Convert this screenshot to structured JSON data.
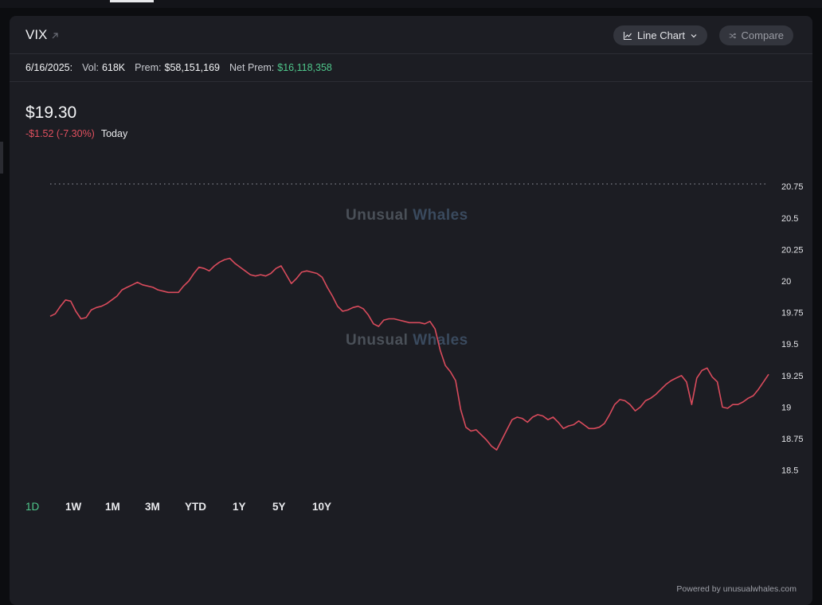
{
  "header": {
    "ticker": "VIX",
    "line_chart_label": "Line Chart",
    "compare_label": "Compare"
  },
  "stats": {
    "date": "6/16/2025:",
    "vol_label": "Vol:",
    "vol_value": "618K",
    "prem_label": "Prem:",
    "prem_value": "$58,151,169",
    "net_prem_label": "Net Prem:",
    "net_prem_value": "$16,118,358"
  },
  "quote": {
    "price": "$19.30",
    "change": "-$1.52 (-7.30%)",
    "period": "Today"
  },
  "watermark": {
    "part1": "Unusual",
    "part2": "Whales"
  },
  "ranges": {
    "items": [
      "1D",
      "1W",
      "1M",
      "3M",
      "YTD",
      "1Y",
      "5Y",
      "10Y"
    ],
    "active": "1D"
  },
  "footer": {
    "powered": "Powered by unusualwhales.com"
  },
  "colors": {
    "line": "#d94b5c",
    "accent_green": "#4fc78b",
    "background": "#1c1d23"
  },
  "chart_data": {
    "type": "line",
    "title": "",
    "xlabel": "",
    "ylabel": "",
    "ylim": [
      18.35,
      20.85
    ],
    "yticks": [
      20.75,
      20.5,
      20.25,
      20,
      19.75,
      19.5,
      19.25,
      19,
      18.75,
      18.5
    ],
    "ytick_labels": [
      "20.75",
      "20.5",
      "20.25",
      "20",
      "19.75",
      "19.5",
      "19.25",
      "19",
      "18.75",
      "18.5"
    ],
    "reference_line": 20.77,
    "grid": false,
    "series": [
      {
        "values": [
          19.72,
          19.74,
          19.8,
          19.85,
          19.84,
          19.76,
          19.7,
          19.71,
          19.77,
          19.79,
          19.8,
          19.82,
          19.85,
          19.88,
          19.93,
          19.95,
          19.97,
          19.99,
          19.97,
          19.96,
          19.95,
          19.93,
          19.92,
          19.91,
          19.91,
          19.91,
          19.96,
          20.0,
          20.06,
          20.11,
          20.1,
          20.08,
          20.12,
          20.15,
          20.17,
          20.18,
          20.14,
          20.11,
          20.08,
          20.05,
          20.04,
          20.05,
          20.04,
          20.06,
          20.1,
          20.12,
          20.05,
          19.98,
          20.02,
          20.07,
          20.08,
          20.07,
          20.06,
          20.03,
          19.95,
          19.88,
          19.8,
          19.76,
          19.77,
          19.79,
          19.8,
          19.78,
          19.73,
          19.66,
          19.64,
          19.69,
          19.7,
          19.7,
          19.69,
          19.68,
          19.67,
          19.67,
          19.67,
          19.66,
          19.68,
          19.62,
          19.45,
          19.33,
          19.28,
          19.21,
          18.98,
          18.84,
          18.81,
          18.82,
          18.78,
          18.74,
          18.69,
          18.66,
          18.74,
          18.82,
          18.9,
          18.92,
          18.91,
          18.88,
          18.92,
          18.94,
          18.93,
          18.9,
          18.92,
          18.88,
          18.83,
          18.85,
          18.86,
          18.89,
          18.86,
          18.83,
          18.83,
          18.84,
          18.87,
          18.94,
          19.02,
          19.06,
          19.05,
          19.02,
          18.97,
          19.0,
          19.05,
          19.07,
          19.1,
          19.14,
          19.18,
          19.21,
          19.23,
          19.25,
          19.2,
          19.02,
          19.23,
          19.29,
          19.31,
          19.24,
          19.2,
          19.0,
          18.99,
          19.02,
          19.02,
          19.04,
          19.07,
          19.09,
          19.14,
          19.2,
          19.26
        ]
      }
    ]
  }
}
